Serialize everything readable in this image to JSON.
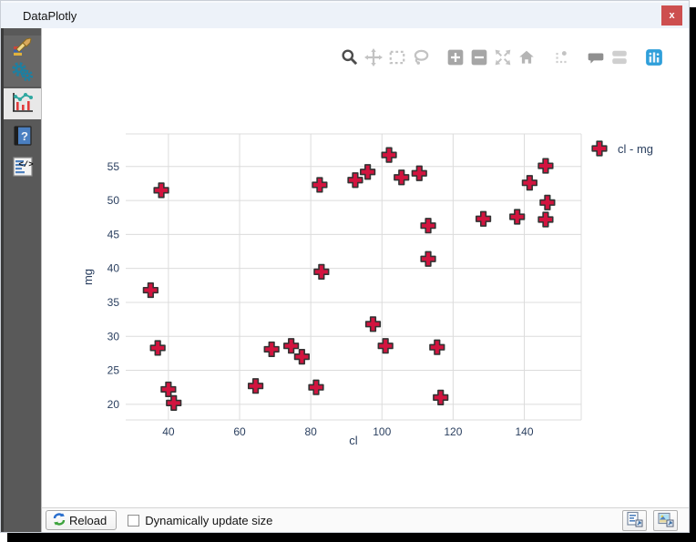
{
  "window": {
    "title": "DataPlotly",
    "close_label": "x"
  },
  "sidebar": {
    "items": [
      {
        "name": "plot-style",
        "icon": "paintbrush-icon",
        "selected": false
      },
      {
        "name": "plot-settings",
        "icon": "gears-icon",
        "selected": false
      },
      {
        "name": "plot-view",
        "icon": "chart-icon",
        "selected": true
      },
      {
        "name": "help",
        "icon": "help-book-icon",
        "selected": false
      },
      {
        "name": "code",
        "icon": "code-icon",
        "selected": false
      }
    ]
  },
  "modebar": {
    "icons": [
      "zoom",
      "pan",
      "box-select",
      "lasso-select",
      "zoom-in",
      "zoom-out",
      "autoscale",
      "reset-axes",
      "toggle-spike-lines",
      "show-closest-on-hover",
      "compare-data-on-hover",
      "plotly-logo"
    ]
  },
  "chart_data": {
    "type": "scatter",
    "title": "",
    "xlabel": "cl",
    "ylabel": "mg",
    "xlim": [
      28,
      156
    ],
    "ylim": [
      17.7,
      59.8
    ],
    "xticks": [
      40,
      60,
      80,
      100,
      120,
      140
    ],
    "yticks": [
      20,
      25,
      30,
      35,
      40,
      45,
      50,
      55
    ],
    "grid": true,
    "grid_color": "#dcdcdc",
    "tick_color": "#2a3f5f",
    "legend_position": "top-right",
    "series": [
      {
        "name": "cl - mg",
        "marker": "cross",
        "color": "#d2143f",
        "outline": "#333333",
        "points": [
          [
            35,
            36.8
          ],
          [
            37,
            28.3
          ],
          [
            38,
            51.5
          ],
          [
            40,
            22.2
          ],
          [
            41.5,
            20.2
          ],
          [
            64.5,
            22.7
          ],
          [
            69,
            28.1
          ],
          [
            74.5,
            28.6
          ],
          [
            77.5,
            27.0
          ],
          [
            81.5,
            22.5
          ],
          [
            82.5,
            52.3
          ],
          [
            83,
            39.5
          ],
          [
            92.5,
            53.0
          ],
          [
            96,
            54.2
          ],
          [
            97.5,
            31.8
          ],
          [
            101,
            28.6
          ],
          [
            102,
            56.7
          ],
          [
            105.5,
            53.4
          ],
          [
            110.5,
            54.0
          ],
          [
            113,
            46.3
          ],
          [
            113,
            41.4
          ],
          [
            115.5,
            28.4
          ],
          [
            116.5,
            21.0
          ],
          [
            128.5,
            47.3
          ],
          [
            138,
            47.6
          ],
          [
            141.5,
            52.6
          ],
          [
            146,
            55.1
          ],
          [
            146.5,
            49.7
          ],
          [
            146,
            47.2
          ]
        ]
      }
    ]
  },
  "footer": {
    "reload_label": "Reload",
    "checkbox_label": "Dynamically update size",
    "checkbox_checked": false
  }
}
